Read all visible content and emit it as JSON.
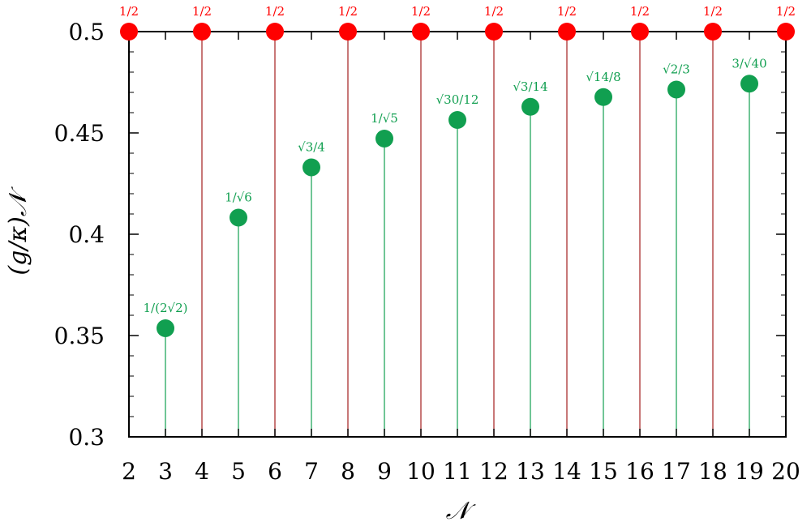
{
  "chart_data": {
    "type": "scatter",
    "xlabel": "𝒩",
    "ylabel": "(g/κ)𝒩",
    "xlim": [
      2,
      20
    ],
    "ylim": [
      0.3,
      0.5
    ],
    "x_ticks": [
      2,
      3,
      4,
      5,
      6,
      7,
      8,
      9,
      10,
      11,
      12,
      13,
      14,
      15,
      16,
      17,
      18,
      19,
      20
    ],
    "x_tick_labels": [
      "2",
      "3",
      "4",
      "5",
      "6",
      "7",
      "8",
      "9",
      "10",
      "11",
      "12",
      "13",
      "14",
      "15",
      "16",
      "17",
      "18",
      "19",
      "20"
    ],
    "y_ticks": [
      0.3,
      0.35,
      0.4,
      0.45,
      0.5
    ],
    "y_tick_labels": [
      "0.3",
      "0.35",
      "0.4",
      "0.45",
      "0.5"
    ],
    "grid": false,
    "stems": true,
    "series": [
      {
        "color": "#ff0000",
        "stem_color": "#a31f1f",
        "x": [
          2,
          4,
          6,
          8,
          10,
          12,
          14,
          16,
          18,
          20
        ],
        "y": [
          0.5,
          0.5,
          0.5,
          0.5,
          0.5,
          0.5,
          0.5,
          0.5,
          0.5,
          0.5
        ],
        "labels": [
          "1/2",
          "1/2",
          "1/2",
          "1/2",
          "1/2",
          "1/2",
          "1/2",
          "1/2",
          "1/2",
          "1/2"
        ]
      },
      {
        "color": "#119f50",
        "stem_color": "#119f50",
        "x": [
          3,
          5,
          7,
          9,
          11,
          13,
          15,
          17,
          19
        ],
        "y": [
          0.3536,
          0.4082,
          0.433,
          0.4472,
          0.4564,
          0.4629,
          0.4677,
          0.4714,
          0.4743
        ],
        "labels": [
          "1/(2√2)",
          "1/√6",
          "√3/4",
          "1/√5",
          "√30/12",
          "√3/14",
          "√14/8",
          "√2/3",
          "3/√40"
        ]
      }
    ]
  }
}
